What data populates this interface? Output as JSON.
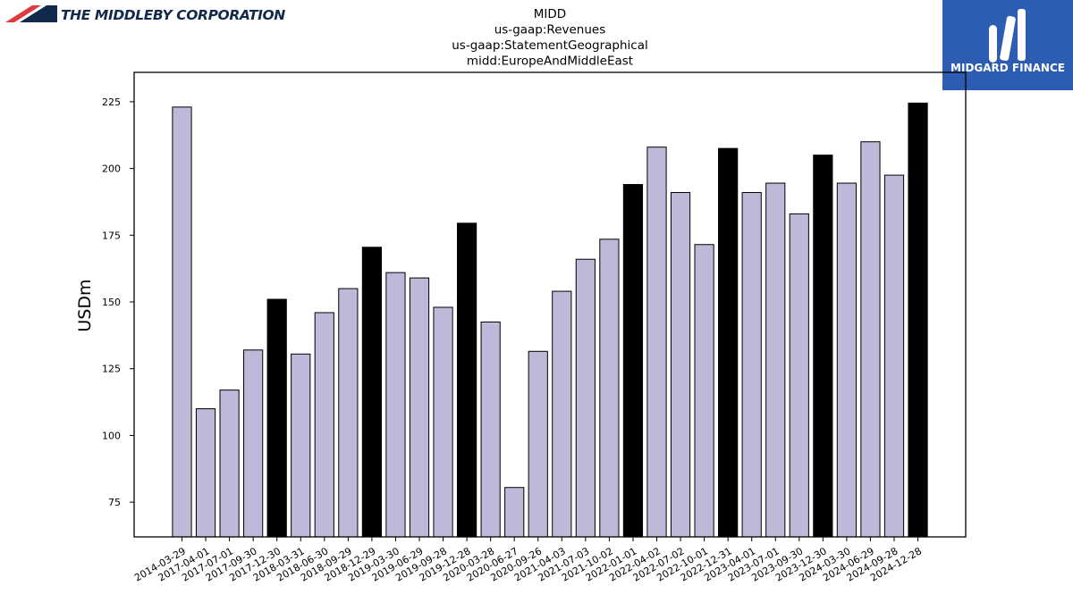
{
  "header": {
    "company_logo_text": "THE MIDDLEBY CORPORATION",
    "brand_logo_text": "MIDGARD FINANCE"
  },
  "colors": {
    "bar_default": "#bcb9d9",
    "bar_highlight": "#000000",
    "brand_bg": "#2d5db3",
    "company_red": "#e03a3e",
    "company_navy": "#13294b"
  },
  "chart_data": {
    "type": "bar",
    "title_lines": [
      "MIDD",
      "us-gaap:Revenues",
      "us-gaap:StatementGeographical",
      "midd:EuropeAndMiddleEast"
    ],
    "xlabel": "",
    "ylabel": "USDm",
    "ylim": [
      62,
      236
    ],
    "yticks": [
      75,
      100,
      125,
      150,
      175,
      200,
      225
    ],
    "grid": false,
    "legend": "none",
    "categories": [
      "2014-03-29",
      "2017-04-01",
      "2017-07-01",
      "2017-09-30",
      "2017-12-30",
      "2018-03-31",
      "2018-06-30",
      "2018-09-29",
      "2018-12-29",
      "2019-03-30",
      "2019-06-29",
      "2019-09-28",
      "2019-12-28",
      "2020-03-28",
      "2020-06-27",
      "2020-09-26",
      "2021-04-03",
      "2021-07-03",
      "2021-10-02",
      "2022-01-01",
      "2022-04-02",
      "2022-07-02",
      "2022-10-01",
      "2022-12-31",
      "2023-04-01",
      "2023-07-01",
      "2023-09-30",
      "2023-12-30",
      "2024-03-30",
      "2024-06-29",
      "2024-09-28",
      "2024-12-28"
    ],
    "values": [
      223,
      110,
      117,
      132,
      151,
      130.5,
      146,
      155,
      170.5,
      161,
      159,
      148,
      179.5,
      142.5,
      80.5,
      131.5,
      154,
      166,
      173.5,
      194,
      208,
      191,
      171.5,
      207.5,
      191,
      194.5,
      183,
      205,
      194.5,
      210,
      197.5,
      224.5
    ],
    "highlighted": [
      false,
      false,
      false,
      false,
      true,
      false,
      false,
      false,
      true,
      false,
      false,
      false,
      true,
      false,
      false,
      false,
      false,
      false,
      false,
      true,
      false,
      false,
      false,
      true,
      false,
      false,
      false,
      true,
      false,
      false,
      false,
      true
    ]
  }
}
